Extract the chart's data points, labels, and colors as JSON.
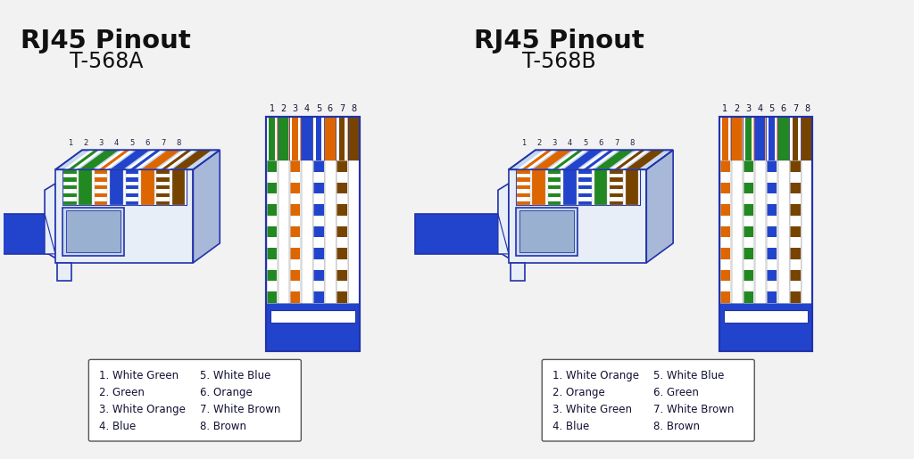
{
  "bg_color": "#f2f2f2",
  "title_left": "RJ45 Pinout",
  "subtitle_left": "T-568A",
  "title_right": "RJ45 Pinout",
  "subtitle_right": "T-568B",
  "blue": "#2244cc",
  "body_light": "#e8eef8",
  "body_mid": "#c8d8ee",
  "body_dark": "#a8b8d8",
  "outline": "#2233aa",
  "t568a_wires": [
    {
      "name": "White Green",
      "base": "#ffffff",
      "stripe": "#228822"
    },
    {
      "name": "Green",
      "base": "#228822",
      "stripe": null
    },
    {
      "name": "White Orange",
      "base": "#ffffff",
      "stripe": "#dd6600"
    },
    {
      "name": "Blue",
      "base": "#2244cc",
      "stripe": null
    },
    {
      "name": "White Blue",
      "base": "#ffffff",
      "stripe": "#2244cc"
    },
    {
      "name": "Orange",
      "base": "#dd6600",
      "stripe": null
    },
    {
      "name": "White Brown",
      "base": "#ffffff",
      "stripe": "#774400"
    },
    {
      "name": "Brown",
      "base": "#774400",
      "stripe": null
    }
  ],
  "t568b_wires": [
    {
      "name": "White Orange",
      "base": "#ffffff",
      "stripe": "#dd6600"
    },
    {
      "name": "Orange",
      "base": "#dd6600",
      "stripe": null
    },
    {
      "name": "White Green",
      "base": "#ffffff",
      "stripe": "#228822"
    },
    {
      "name": "Blue",
      "base": "#2244cc",
      "stripe": null
    },
    {
      "name": "White Blue",
      "base": "#ffffff",
      "stripe": "#2244cc"
    },
    {
      "name": "Green",
      "base": "#228822",
      "stripe": null
    },
    {
      "name": "White Brown",
      "base": "#ffffff",
      "stripe": "#774400"
    },
    {
      "name": "Brown",
      "base": "#774400",
      "stripe": null
    }
  ],
  "legend_left": [
    "1. White Green",
    "2. Green",
    "3. White Orange",
    "4. Blue",
    "5. White Blue",
    "6. Orange",
    "7. White Brown",
    "8. Brown"
  ],
  "legend_right": [
    "1. White Orange",
    "2. Orange",
    "3. White Green",
    "4. Blue",
    "5. White Blue",
    "6. Green",
    "7. White Brown",
    "8. Brown"
  ]
}
